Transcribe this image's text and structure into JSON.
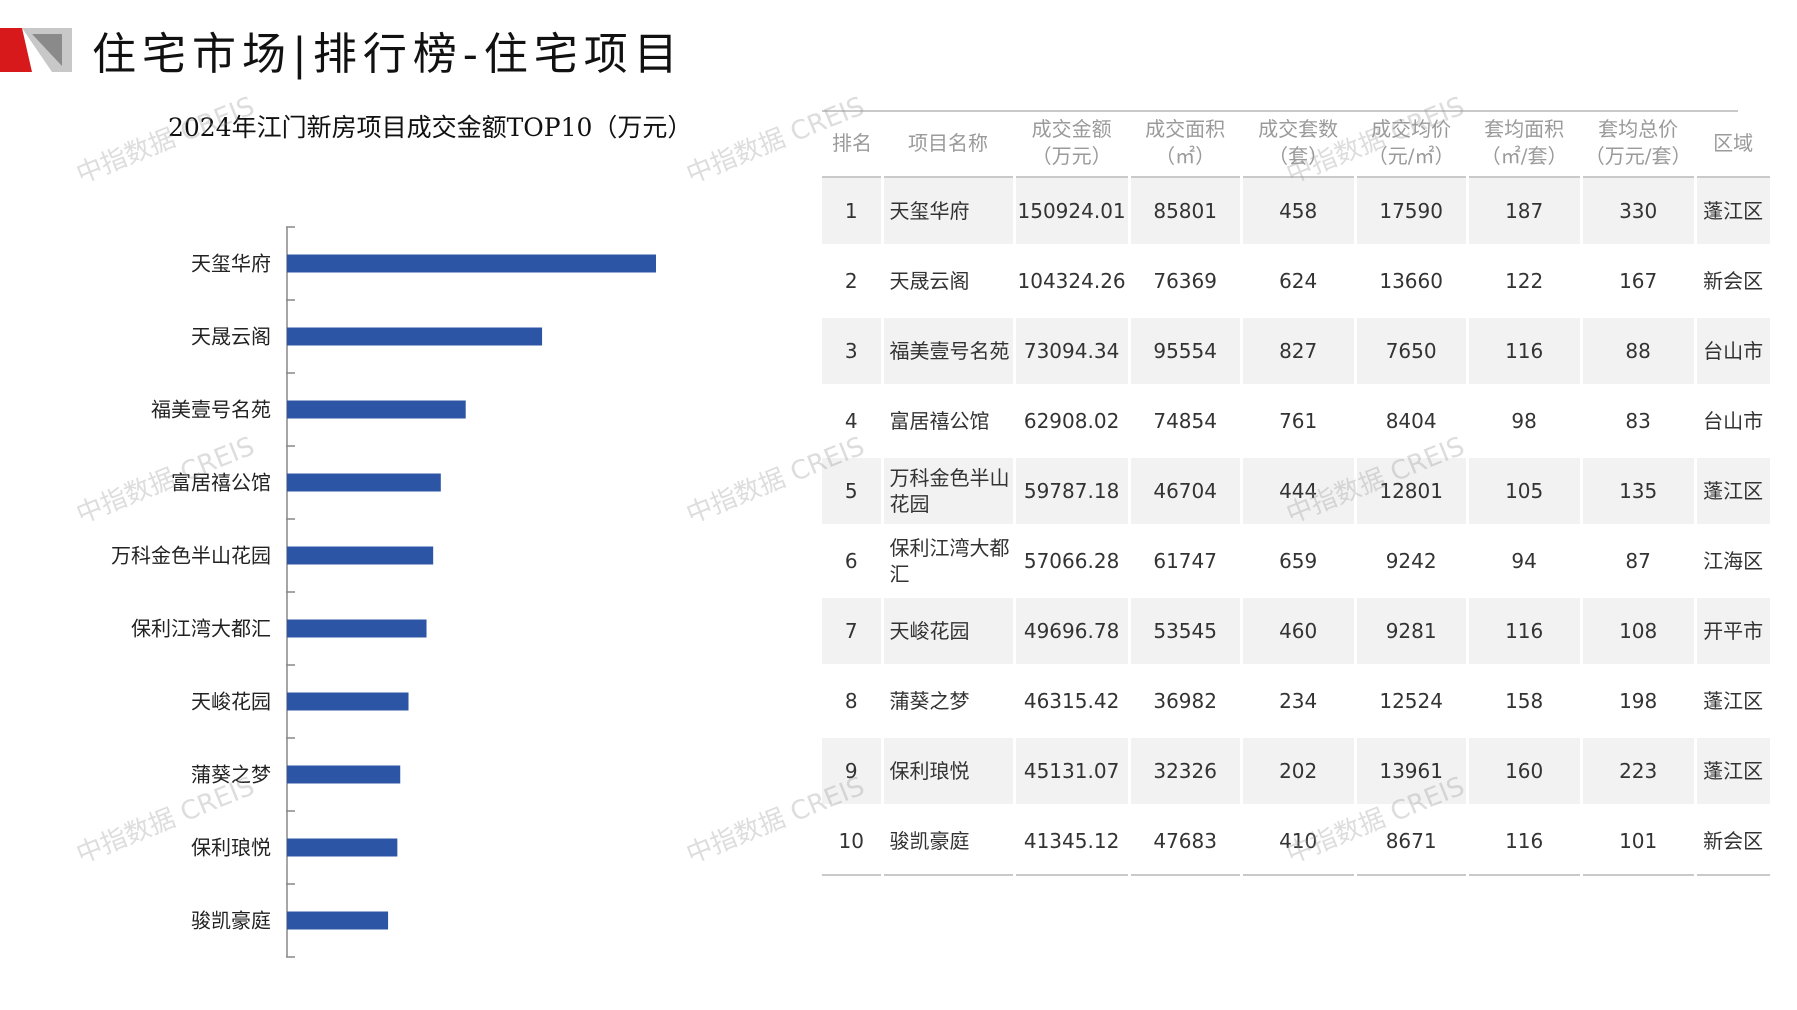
{
  "page": {
    "title": "住宅市场|排行榜-住宅项目",
    "watermark": "中指数据 CREIS"
  },
  "colors": {
    "bar": "#2d55a6",
    "logo_red": "#d7191c",
    "logo_gray": "#8a8a8a"
  },
  "chart_data": {
    "type": "bar",
    "orientation": "horizontal",
    "title": "2024年江门新房项目成交金额TOP10（万元）",
    "categories": [
      "天玺华府",
      "天晟云阁",
      "福美壹号名苑",
      "富居禧公馆",
      "万科金色半山花园",
      "保利江湾大都汇",
      "天峻花园",
      "蒲葵之梦",
      "保利琅悦",
      "骏凯豪庭"
    ],
    "values": [
      150924.01,
      104324.26,
      73094.34,
      62908.02,
      59787.18,
      57066.28,
      49696.78,
      46315.42,
      45131.07,
      41345.12
    ],
    "xlim": [
      0,
      200000
    ]
  },
  "table": {
    "headers": [
      "排名",
      "项目名称",
      "成交金额\n（万元）",
      "成交面积\n（㎡）",
      "成交套数\n（套）",
      "成交均价\n（元/㎡）",
      "套均面积\n（㎡/套）",
      "套均总价\n（万元/套）",
      "区域"
    ],
    "rows": [
      [
        "1",
        "天玺华府",
        "150924.01",
        "85801",
        "458",
        "17590",
        "187",
        "330",
        "蓬江区"
      ],
      [
        "2",
        "天晟云阁",
        "104324.26",
        "76369",
        "624",
        "13660",
        "122",
        "167",
        "新会区"
      ],
      [
        "3",
        "福美壹号名苑",
        "73094.34",
        "95554",
        "827",
        "7650",
        "116",
        "88",
        "台山市"
      ],
      [
        "4",
        "富居禧公馆",
        "62908.02",
        "74854",
        "761",
        "8404",
        "98",
        "83",
        "台山市"
      ],
      [
        "5",
        "万科金色半山花园",
        "59787.18",
        "46704",
        "444",
        "12801",
        "105",
        "135",
        "蓬江区"
      ],
      [
        "6",
        "保利江湾大都汇",
        "57066.28",
        "61747",
        "659",
        "9242",
        "94",
        "87",
        "江海区"
      ],
      [
        "7",
        "天峻花园",
        "49696.78",
        "53545",
        "460",
        "9281",
        "116",
        "108",
        "开平市"
      ],
      [
        "8",
        "蒲葵之梦",
        "46315.42",
        "36982",
        "234",
        "12524",
        "158",
        "198",
        "蓬江区"
      ],
      [
        "9",
        "保利琅悦",
        "45131.07",
        "32326",
        "202",
        "13961",
        "160",
        "223",
        "蓬江区"
      ],
      [
        "10",
        "骏凯豪庭",
        "41345.12",
        "47683",
        "410",
        "8671",
        "116",
        "101",
        "新会区"
      ]
    ]
  }
}
